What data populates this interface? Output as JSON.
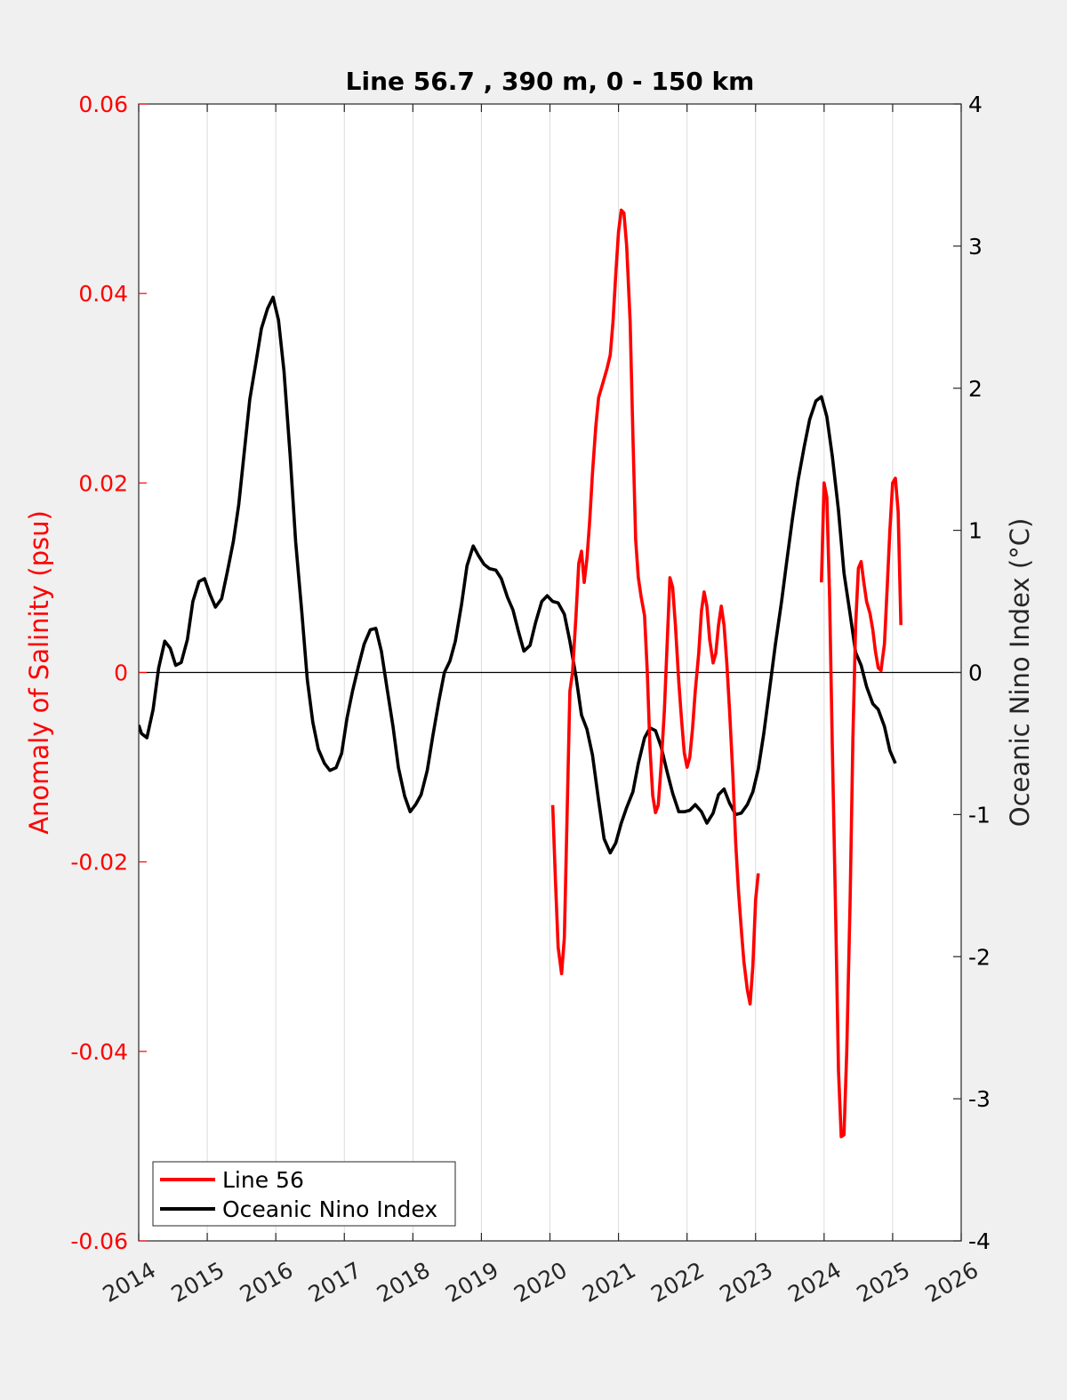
{
  "chart_data": {
    "type": "line",
    "title": "Line 56.7 , 390 m, 0 - 150 km",
    "xlabel": "",
    "ylabel_left": "Anomaly of Salinity (psu)",
    "ylabel_right": "Oceanic Nino Index (°C)",
    "xlim": [
      2014,
      2026
    ],
    "ylim_left": [
      -0.06,
      0.06
    ],
    "ylim_right": [
      -4,
      4
    ],
    "x_ticks": [
      "2014",
      "2015",
      "2016",
      "2017",
      "2018",
      "2019",
      "2020",
      "2021",
      "2022",
      "2023",
      "2024",
      "2025",
      "2026"
    ],
    "y_left_ticks": [
      "-0.06",
      "-0.04",
      "-0.02",
      "0",
      "0.02",
      "0.04",
      "0.06"
    ],
    "y_right_ticks": [
      "-4",
      "-3",
      "-2",
      "-1",
      "0",
      "1",
      "2",
      "3",
      "4"
    ],
    "grid": "vertical",
    "legend_position": "bottom-left",
    "colors": {
      "salinity": "#ff0000",
      "oni": "#000000",
      "left_axis": "#ff0000",
      "right_axis": "#000000"
    },
    "series": [
      {
        "name": "Line 56",
        "axis": "left",
        "segments": [
          [
            [
              2020.04,
              -0.014
            ],
            [
              2020.08,
              -0.022
            ],
            [
              2020.12,
              -0.029
            ],
            [
              2020.17,
              -0.0318
            ],
            [
              2020.21,
              -0.028
            ],
            [
              2020.25,
              -0.015
            ],
            [
              2020.29,
              -0.002
            ],
            [
              2020.33,
              0.0
            ],
            [
              2020.38,
              0.006
            ],
            [
              2020.42,
              0.0115
            ],
            [
              2020.46,
              0.0128
            ],
            [
              2020.5,
              0.0095
            ],
            [
              2020.54,
              0.012
            ],
            [
              2020.58,
              0.016
            ],
            [
              2020.62,
              0.021
            ],
            [
              2020.67,
              0.026
            ],
            [
              2020.71,
              0.029
            ],
            [
              2020.75,
              0.03
            ],
            [
              2020.79,
              0.031
            ],
            [
              2020.83,
              0.032
            ],
            [
              2020.88,
              0.0335
            ],
            [
              2020.92,
              0.037
            ],
            [
              2020.96,
              0.042
            ],
            [
              2021.0,
              0.0465
            ],
            [
              2021.04,
              0.0488
            ],
            [
              2021.08,
              0.0485
            ],
            [
              2021.12,
              0.045
            ],
            [
              2021.17,
              0.037
            ],
            [
              2021.21,
              0.025
            ],
            [
              2021.25,
              0.014
            ],
            [
              2021.29,
              0.01
            ],
            [
              2021.33,
              0.008
            ],
            [
              2021.38,
              0.006
            ],
            [
              2021.42,
              0.0
            ],
            [
              2021.46,
              -0.008
            ],
            [
              2021.5,
              -0.013
            ],
            [
              2021.54,
              -0.0148
            ],
            [
              2021.58,
              -0.014
            ],
            [
              2021.62,
              -0.01
            ],
            [
              2021.67,
              -0.004
            ],
            [
              2021.71,
              0.003
            ],
            [
              2021.75,
              0.01
            ],
            [
              2021.79,
              0.009
            ],
            [
              2021.83,
              0.005
            ],
            [
              2021.88,
              -0.001
            ],
            [
              2021.92,
              -0.005
            ],
            [
              2021.96,
              -0.0085
            ],
            [
              2022.0,
              -0.01
            ],
            [
              2022.04,
              -0.009
            ],
            [
              2022.08,
              -0.006
            ],
            [
              2022.12,
              -0.002
            ],
            [
              2022.17,
              0.002
            ],
            [
              2022.21,
              0.0065
            ],
            [
              2022.25,
              0.0085
            ],
            [
              2022.29,
              0.007
            ],
            [
              2022.33,
              0.0035
            ],
            [
              2022.38,
              0.001
            ],
            [
              2022.42,
              0.002
            ],
            [
              2022.46,
              0.005
            ],
            [
              2022.5,
              0.007
            ],
            [
              2022.54,
              0.005
            ],
            [
              2022.58,
              0.001
            ],
            [
              2022.62,
              -0.004
            ],
            [
              2022.67,
              -0.011
            ],
            [
              2022.71,
              -0.018
            ],
            [
              2022.75,
              -0.023
            ],
            [
              2022.79,
              -0.027
            ],
            [
              2022.83,
              -0.0305
            ],
            [
              2022.88,
              -0.0335
            ],
            [
              2022.92,
              -0.035
            ],
            [
              2022.96,
              -0.031
            ],
            [
              2023.0,
              -0.024
            ],
            [
              2023.04,
              -0.0212
            ]
          ],
          [
            [
              2023.96,
              0.0095
            ],
            [
              2024.0,
              0.02
            ],
            [
              2024.04,
              0.0185
            ],
            [
              2024.08,
              0.008
            ],
            [
              2024.12,
              -0.008
            ],
            [
              2024.17,
              -0.026
            ],
            [
              2024.21,
              -0.042
            ],
            [
              2024.25,
              -0.049
            ],
            [
              2024.29,
              -0.0488
            ],
            [
              2024.33,
              -0.04
            ],
            [
              2024.38,
              -0.024
            ],
            [
              2024.42,
              -0.007
            ],
            [
              2024.46,
              0.005
            ],
            [
              2024.5,
              0.011
            ],
            [
              2024.54,
              0.0117
            ],
            [
              2024.58,
              0.0095
            ],
            [
              2024.62,
              0.0075
            ],
            [
              2024.67,
              0.0062
            ],
            [
              2024.71,
              0.0045
            ],
            [
              2024.75,
              0.0022
            ],
            [
              2024.79,
              0.0005
            ],
            [
              2024.83,
              0.0002
            ],
            [
              2024.88,
              0.003
            ],
            [
              2024.92,
              0.009
            ],
            [
              2024.96,
              0.015
            ],
            [
              2025.0,
              0.02
            ],
            [
              2025.04,
              0.0205
            ],
            [
              2025.08,
              0.017
            ],
            [
              2025.12,
              0.005
            ]
          ]
        ]
      },
      {
        "name": "Oceanic Nino Index",
        "axis": "right",
        "segments": [
          [
            [
              2014.0,
              -0.37
            ],
            [
              2014.04,
              -0.43
            ],
            [
              2014.12,
              -0.46
            ],
            [
              2014.21,
              -0.26
            ],
            [
              2014.29,
              0.03
            ],
            [
              2014.38,
              0.22
            ],
            [
              2014.46,
              0.17
            ],
            [
              2014.54,
              0.05
            ],
            [
              2014.62,
              0.07
            ],
            [
              2014.71,
              0.23
            ],
            [
              2014.79,
              0.5
            ],
            [
              2014.88,
              0.64
            ],
            [
              2014.96,
              0.66
            ],
            [
              2015.04,
              0.55
            ],
            [
              2015.12,
              0.46
            ],
            [
              2015.21,
              0.52
            ],
            [
              2015.29,
              0.7
            ],
            [
              2015.38,
              0.92
            ],
            [
              2015.46,
              1.18
            ],
            [
              2015.54,
              1.55
            ],
            [
              2015.62,
              1.92
            ],
            [
              2015.71,
              2.18
            ],
            [
              2015.79,
              2.42
            ],
            [
              2015.88,
              2.56
            ],
            [
              2015.96,
              2.64
            ],
            [
              2016.04,
              2.48
            ],
            [
              2016.12,
              2.12
            ],
            [
              2016.21,
              1.52
            ],
            [
              2016.29,
              0.92
            ],
            [
              2016.38,
              0.42
            ],
            [
              2016.46,
              -0.05
            ],
            [
              2016.54,
              -0.35
            ],
            [
              2016.62,
              -0.54
            ],
            [
              2016.71,
              -0.64
            ],
            [
              2016.79,
              -0.69
            ],
            [
              2016.88,
              -0.67
            ],
            [
              2016.96,
              -0.57
            ],
            [
              2017.04,
              -0.32
            ],
            [
              2017.12,
              -0.13
            ],
            [
              2017.21,
              0.05
            ],
            [
              2017.29,
              0.2
            ],
            [
              2017.38,
              0.3
            ],
            [
              2017.46,
              0.31
            ],
            [
              2017.54,
              0.15
            ],
            [
              2017.62,
              -0.1
            ],
            [
              2017.71,
              -0.38
            ],
            [
              2017.79,
              -0.67
            ],
            [
              2017.88,
              -0.87
            ],
            [
              2017.96,
              -0.98
            ],
            [
              2018.04,
              -0.93
            ],
            [
              2018.12,
              -0.86
            ],
            [
              2018.21,
              -0.69
            ],
            [
              2018.29,
              -0.45
            ],
            [
              2018.38,
              -0.2
            ],
            [
              2018.46,
              0.0
            ],
            [
              2018.54,
              0.08
            ],
            [
              2018.62,
              0.22
            ],
            [
              2018.71,
              0.48
            ],
            [
              2018.79,
              0.75
            ],
            [
              2018.88,
              0.89
            ],
            [
              2018.96,
              0.82
            ],
            [
              2019.04,
              0.76
            ],
            [
              2019.12,
              0.73
            ],
            [
              2019.21,
              0.72
            ],
            [
              2019.29,
              0.66
            ],
            [
              2019.38,
              0.53
            ],
            [
              2019.46,
              0.44
            ],
            [
              2019.54,
              0.29
            ],
            [
              2019.62,
              0.15
            ],
            [
              2019.71,
              0.19
            ],
            [
              2019.79,
              0.35
            ],
            [
              2019.88,
              0.5
            ],
            [
              2019.96,
              0.54
            ],
            [
              2020.04,
              0.5
            ],
            [
              2020.12,
              0.49
            ],
            [
              2020.21,
              0.41
            ],
            [
              2020.29,
              0.22
            ],
            [
              2020.38,
              -0.03
            ],
            [
              2020.46,
              -0.3
            ],
            [
              2020.54,
              -0.4
            ],
            [
              2020.62,
              -0.58
            ],
            [
              2020.71,
              -0.9
            ],
            [
              2020.79,
              -1.17
            ],
            [
              2020.88,
              -1.27
            ],
            [
              2020.96,
              -1.2
            ],
            [
              2021.04,
              -1.06
            ],
            [
              2021.12,
              -0.95
            ],
            [
              2021.21,
              -0.84
            ],
            [
              2021.29,
              -0.64
            ],
            [
              2021.38,
              -0.46
            ],
            [
              2021.46,
              -0.39
            ],
            [
              2021.54,
              -0.41
            ],
            [
              2021.62,
              -0.52
            ],
            [
              2021.71,
              -0.7
            ],
            [
              2021.79,
              -0.85
            ],
            [
              2021.88,
              -0.98
            ],
            [
              2021.96,
              -0.98
            ],
            [
              2022.04,
              -0.97
            ],
            [
              2022.12,
              -0.93
            ],
            [
              2022.21,
              -0.98
            ],
            [
              2022.29,
              -1.06
            ],
            [
              2022.38,
              -0.99
            ],
            [
              2022.46,
              -0.86
            ],
            [
              2022.54,
              -0.82
            ],
            [
              2022.62,
              -0.92
            ],
            [
              2022.71,
              -1.0
            ],
            [
              2022.79,
              -0.99
            ],
            [
              2022.88,
              -0.93
            ],
            [
              2022.96,
              -0.84
            ],
            [
              2023.04,
              -0.68
            ],
            [
              2023.12,
              -0.43
            ],
            [
              2023.21,
              -0.1
            ],
            [
              2023.29,
              0.2
            ],
            [
              2023.38,
              0.5
            ],
            [
              2023.46,
              0.8
            ],
            [
              2023.54,
              1.09
            ],
            [
              2023.62,
              1.35
            ],
            [
              2023.71,
              1.59
            ],
            [
              2023.79,
              1.78
            ],
            [
              2023.88,
              1.91
            ],
            [
              2023.96,
              1.94
            ],
            [
              2024.04,
              1.8
            ],
            [
              2024.12,
              1.52
            ],
            [
              2024.21,
              1.14
            ],
            [
              2024.29,
              0.7
            ],
            [
              2024.38,
              0.41
            ],
            [
              2024.46,
              0.14
            ],
            [
              2024.54,
              0.05
            ],
            [
              2024.62,
              -0.1
            ],
            [
              2024.71,
              -0.22
            ],
            [
              2024.79,
              -0.26
            ],
            [
              2024.88,
              -0.38
            ],
            [
              2024.96,
              -0.55
            ],
            [
              2025.04,
              -0.64
            ]
          ]
        ]
      }
    ]
  }
}
